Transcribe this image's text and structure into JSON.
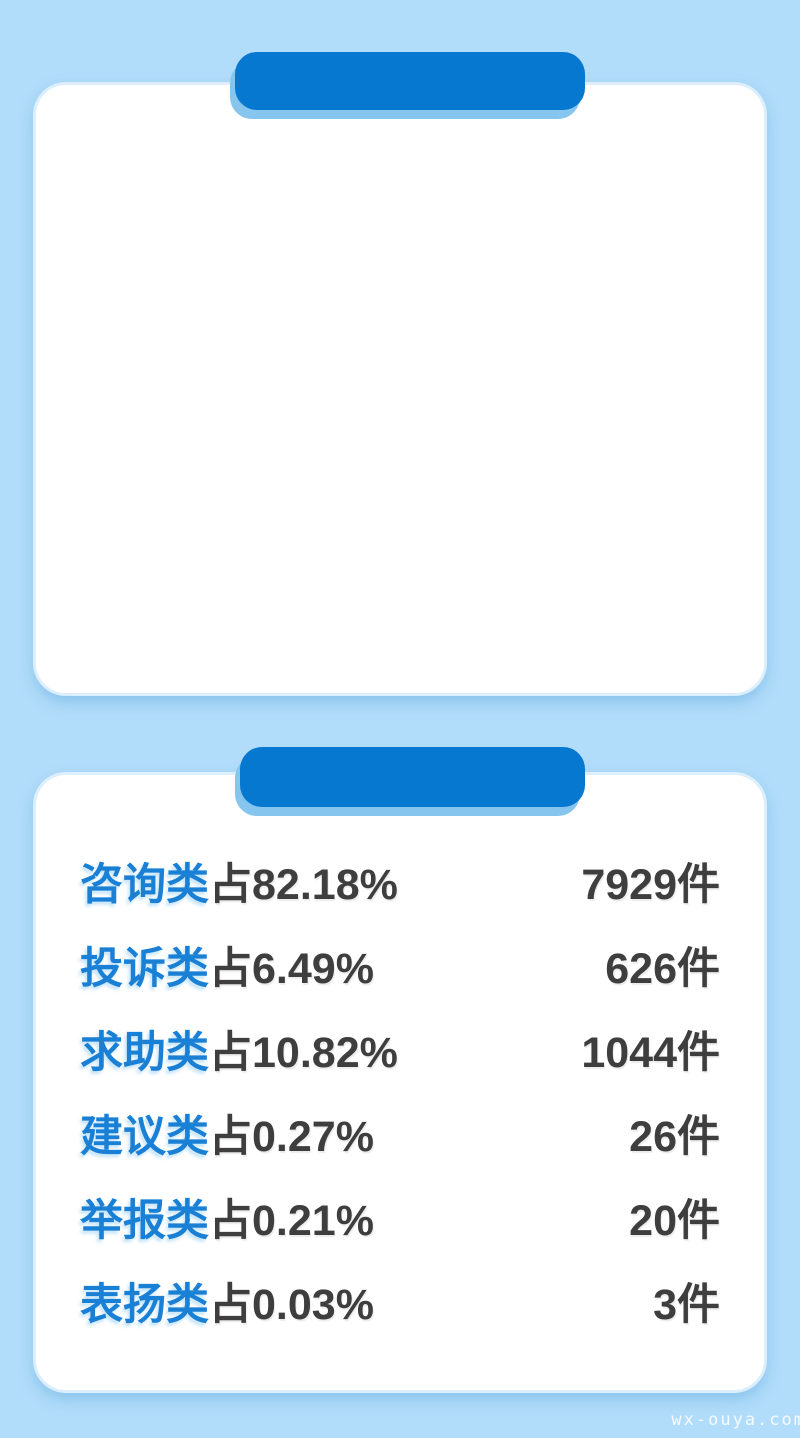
{
  "page": {
    "background_color": "#b2ddfa",
    "watermark": {
      "text": "wx-ouya.com"
    }
  },
  "colors": {
    "pill_blue": "#0778d0",
    "pill_shadow_blue": "#86c5ee",
    "card_white": "#ffffff",
    "category_blue": "#1a80d5",
    "text_dark": "#3e3e3e"
  },
  "top_card": {
    "header_pill_label": ""
  },
  "stats_card": {
    "header_pill_label": "",
    "rows": [
      {
        "category": "咨询类",
        "share_label": "占82.18%",
        "count_label": "7929件"
      },
      {
        "category": "投诉类",
        "share_label": "占6.49%",
        "count_label": "626件"
      },
      {
        "category": "求助类",
        "share_label": "占10.82%",
        "count_label": "1044件"
      },
      {
        "category": "建议类",
        "share_label": "占0.27%",
        "count_label": "26件"
      },
      {
        "category": "举报类",
        "share_label": "占0.21%",
        "count_label": "20件"
      },
      {
        "category": "表扬类",
        "share_label": "占0.03%",
        "count_label": "3件"
      }
    ]
  },
  "chart_data": {
    "type": "table",
    "title": "",
    "categories": [
      "咨询类",
      "投诉类",
      "求助类",
      "建议类",
      "举报类",
      "表扬类"
    ],
    "series": [
      {
        "name": "share_percent",
        "values": [
          82.18,
          6.49,
          10.82,
          0.27,
          0.21,
          0.03
        ]
      },
      {
        "name": "count_items",
        "values": [
          7929,
          626,
          1044,
          26,
          20,
          3
        ]
      }
    ],
    "layout_hints": {
      "unit_share": "%",
      "unit_count": "件",
      "share_prefix": "占",
      "value_alignment": "counts right-aligned, categories left-aligned"
    }
  }
}
